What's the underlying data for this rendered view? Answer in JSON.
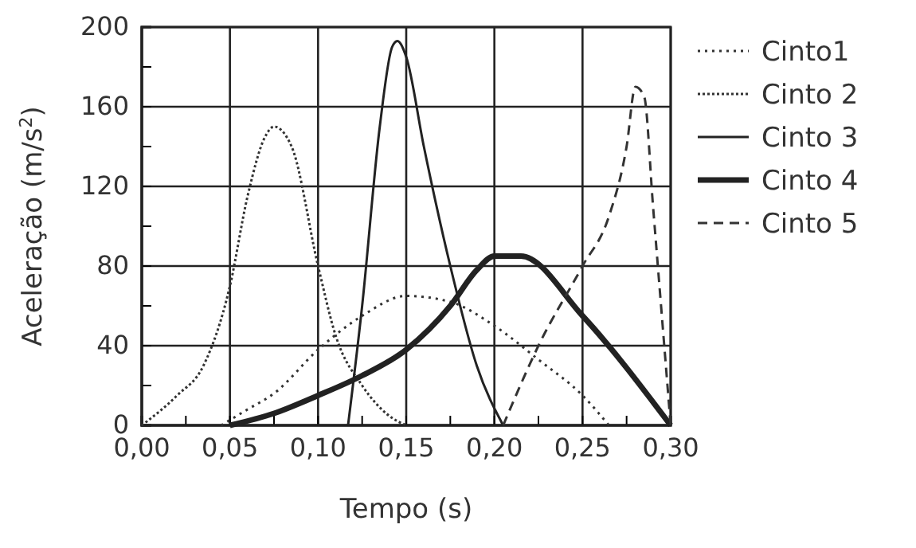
{
  "chart_data": {
    "type": "line",
    "xlabel": "Tempo (s)",
    "ylabel": "Aceleração (m/s$^{2}$)",
    "xlim": [
      0,
      0.3
    ],
    "ylim": [
      0,
      200
    ],
    "xticks": [
      {
        "value": 0,
        "label": "0,00"
      },
      {
        "value": 0.025,
        "label": null
      },
      {
        "value": 0.05,
        "label": "0,05"
      },
      {
        "value": 0.075,
        "label": null
      },
      {
        "value": 0.1,
        "label": "0,10"
      },
      {
        "value": 0.125,
        "label": null
      },
      {
        "value": 0.15,
        "label": "0,15"
      },
      {
        "value": 0.175,
        "label": null
      },
      {
        "value": 0.2,
        "label": "0,20"
      },
      {
        "value": 0.225,
        "label": null
      },
      {
        "value": 0.25,
        "label": "0,25"
      },
      {
        "value": 0.275,
        "label": null
      },
      {
        "value": 0.3,
        "label": "0,30"
      }
    ],
    "yticks": [
      0,
      {
        "value": 20,
        "label": null
      },
      40,
      {
        "value": 60,
        "label": null
      },
      80,
      {
        "value": 100,
        "label": null
      },
      120,
      {
        "value": 140,
        "label": null
      },
      160,
      {
        "value": 180,
        "label": null
      },
      200
    ],
    "grid": true,
    "legend": "right",
    "marker": "none",
    "series": [
      {
        "name": "Cinto1",
        "color": "#333333",
        "line_style": "dotted",
        "x": [
          0.045,
          0.06,
          0.075,
          0.1,
          0.125,
          0.15,
          0.175,
          0.2,
          0.225,
          0.25,
          0.265
        ],
        "values": [
          0,
          8,
          16,
          38,
          55,
          65,
          62,
          50,
          33,
          15,
          0
        ]
      },
      {
        "name": "Cinto 2",
        "color": "#333333",
        "line_style": "densely dotted",
        "x": [
          0,
          0.02,
          0.035,
          0.05,
          0.06,
          0.07,
          0.075,
          0.085,
          0.1,
          0.11,
          0.125,
          0.14,
          0.15
        ],
        "values": [
          0,
          15,
          30,
          70,
          115,
          145,
          150,
          140,
          80,
          45,
          20,
          5,
          0
        ]
      },
      {
        "name": "Cinto 3",
        "color": "#222222",
        "line_style": "solid",
        "x": [
          0.117,
          0.125,
          0.135,
          0.142,
          0.145,
          0.15,
          0.16,
          0.175,
          0.19,
          0.205
        ],
        "values": [
          0,
          60,
          150,
          190,
          193,
          185,
          140,
          80,
          30,
          0
        ]
      },
      {
        "name": "Cinto 4",
        "color": "#222222",
        "line_style": "solid",
        "x": [
          0.05,
          0.075,
          0.1,
          0.125,
          0.15,
          0.175,
          0.19,
          0.2,
          0.215,
          0.25,
          0.3
        ],
        "values": [
          0,
          6,
          15,
          25,
          38,
          60,
          78,
          85,
          85,
          55,
          0
        ]
      },
      {
        "name": "Cinto 5",
        "color": "#333333",
        "line_style": "dashed",
        "x": [
          0.205,
          0.225,
          0.25,
          0.265,
          0.275,
          0.28,
          0.285,
          0.29,
          0.3
        ],
        "values": [
          0,
          40,
          80,
          105,
          140,
          170,
          165,
          110,
          0
        ]
      }
    ]
  }
}
